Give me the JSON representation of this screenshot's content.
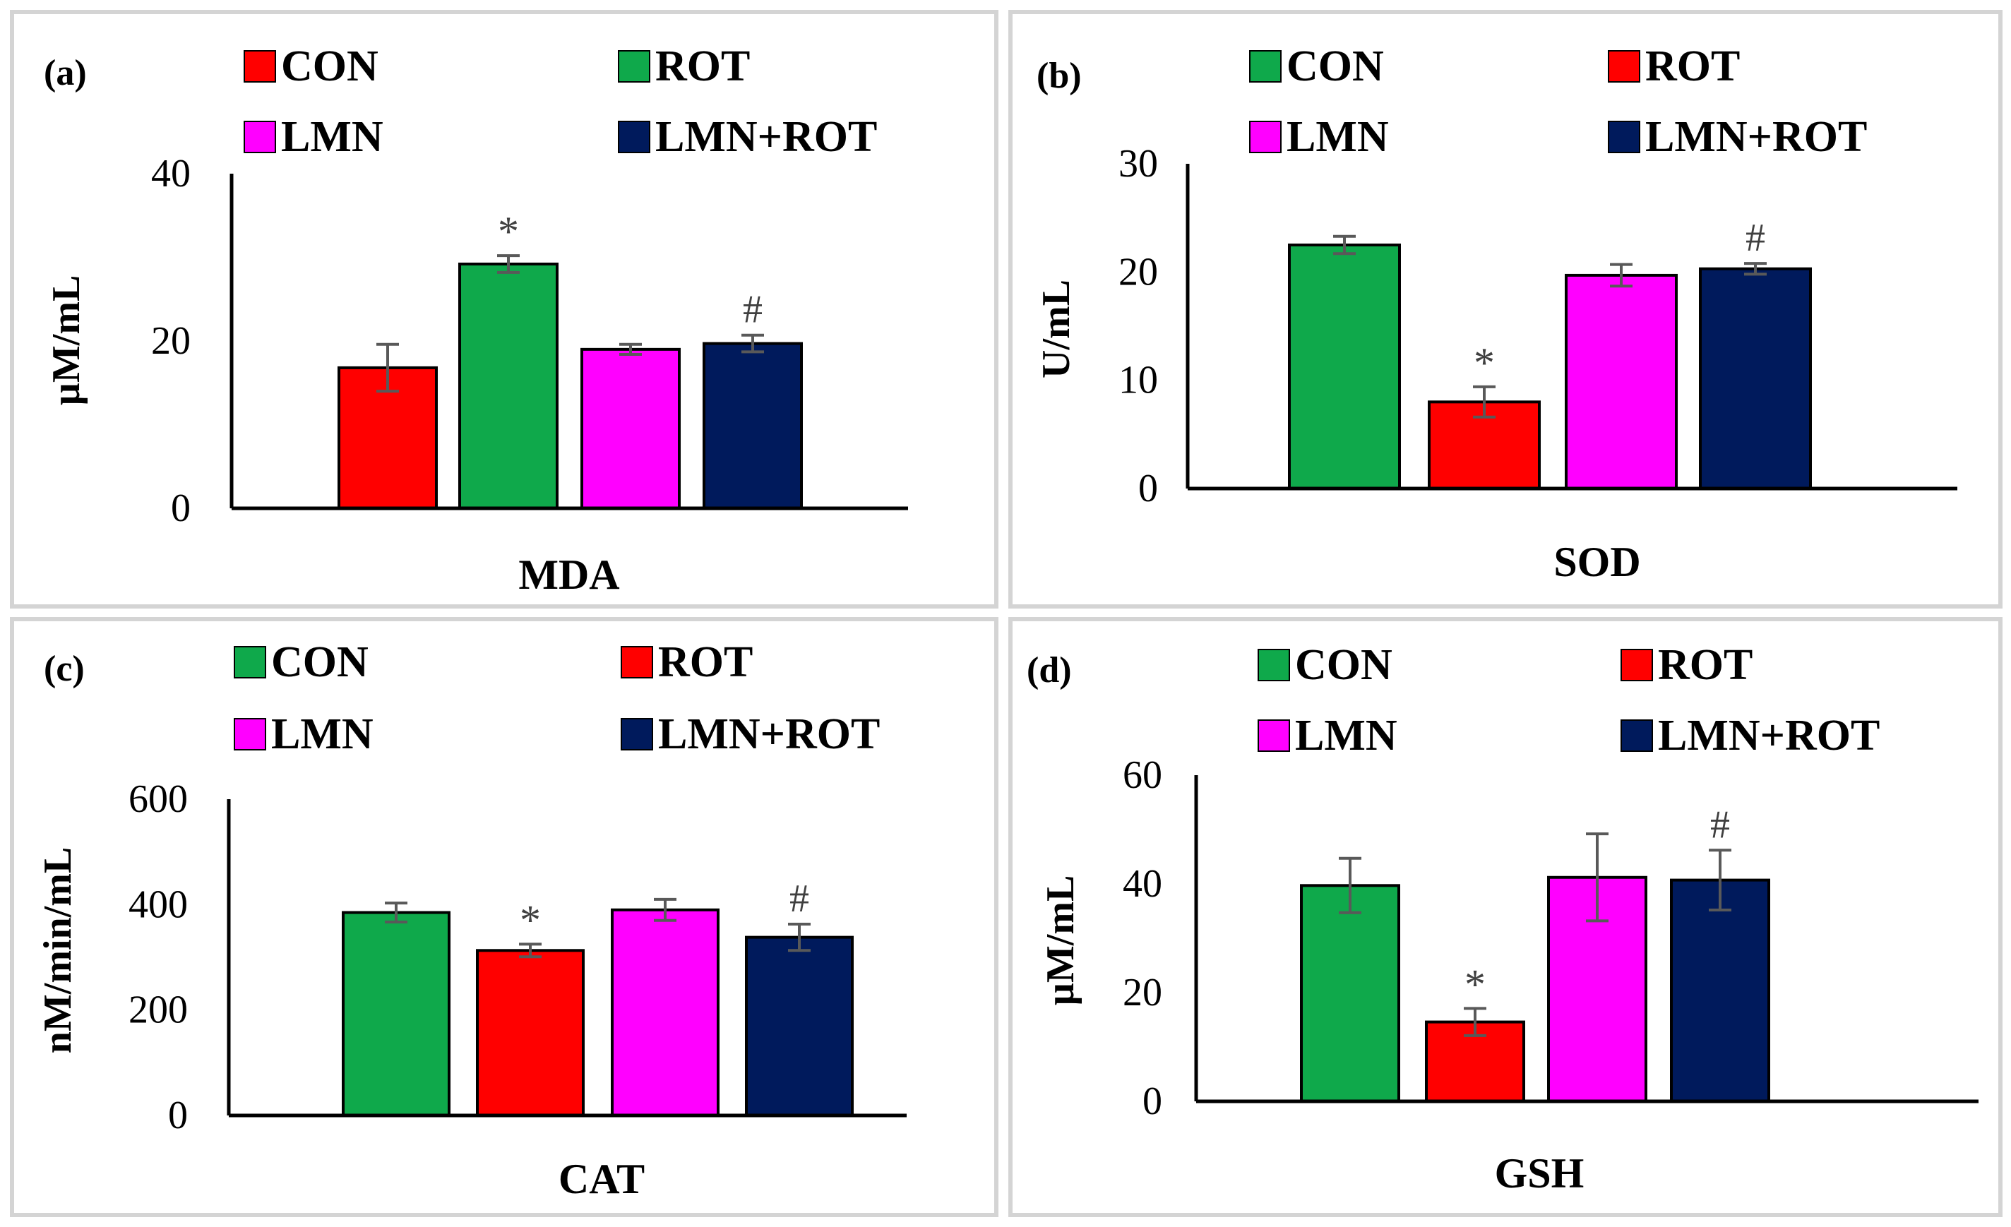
{
  "colors": {
    "green": "#0fa94b",
    "red": "#ff0000",
    "magenta": "#ff00ff",
    "navy": "#001a5c",
    "axis": "#000000",
    "error": "#595959"
  },
  "chart_data": [
    {
      "type": "bar",
      "panel_label": "(a)",
      "xlabel": "MDA",
      "ylabel": "µM/mL",
      "ylim": [
        0,
        40
      ],
      "yticks": [
        "0",
        "20",
        "40"
      ],
      "legend": [
        "CON",
        "ROT",
        "LMN",
        "LMN+ROT"
      ],
      "categories": [
        "CON",
        "ROT",
        "LMN",
        "LMN+ROT"
      ],
      "values": [
        16.8,
        29.2,
        19.0,
        19.7
      ],
      "errors": [
        2.8,
        1.0,
        0.6,
        1.0
      ],
      "annotations": [
        "",
        "*",
        "",
        "#"
      ],
      "series_colors": [
        "red",
        "green",
        "magenta",
        "navy"
      ]
    },
    {
      "type": "bar",
      "panel_label": "(b)",
      "xlabel": "SOD",
      "ylabel": "U/mL",
      "ylim": [
        0,
        30
      ],
      "yticks": [
        "0",
        "10",
        "20",
        "30"
      ],
      "legend": [
        "CON",
        "ROT",
        "LMN",
        "LMN+ROT"
      ],
      "categories": [
        "CON",
        "ROT",
        "LMN",
        "LMN+ROT"
      ],
      "values": [
        22.5,
        8.0,
        19.7,
        20.3
      ],
      "errors": [
        0.8,
        1.4,
        1.0,
        0.5
      ],
      "annotations": [
        "",
        "*",
        "",
        "#"
      ],
      "series_colors": [
        "green",
        "red",
        "magenta",
        "navy"
      ]
    },
    {
      "type": "bar",
      "panel_label": "(c)",
      "xlabel": "CAT",
      "ylabel": "nM/min/mL",
      "ylim": [
        0,
        600
      ],
      "yticks": [
        "0",
        "200",
        "400",
        "600"
      ],
      "legend": [
        "CON",
        "ROT",
        "LMN",
        "LMN+ROT"
      ],
      "categories": [
        "CON",
        "ROT",
        "LMN",
        "LMN+ROT"
      ],
      "values": [
        385,
        313,
        390,
        338
      ],
      "errors": [
        18,
        12,
        20,
        25
      ],
      "annotations": [
        "",
        "*",
        "",
        "#"
      ],
      "series_colors": [
        "green",
        "red",
        "magenta",
        "navy"
      ]
    },
    {
      "type": "bar",
      "panel_label": "(d)",
      "xlabel": "GSH",
      "ylabel": "µM/mL",
      "ylim": [
        0,
        60
      ],
      "yticks": [
        "0",
        "20",
        "40",
        "60"
      ],
      "legend": [
        "CON",
        "ROT",
        "LMN",
        "LMN+ROT"
      ],
      "categories": [
        "CON",
        "ROT",
        "LMN",
        "LMN+ROT"
      ],
      "values": [
        39.7,
        14.6,
        41.2,
        40.7
      ],
      "errors": [
        5.0,
        2.5,
        8.0,
        5.5
      ],
      "annotations": [
        "",
        "*",
        "",
        "#"
      ],
      "series_colors": [
        "green",
        "red",
        "magenta",
        "navy"
      ]
    }
  ]
}
